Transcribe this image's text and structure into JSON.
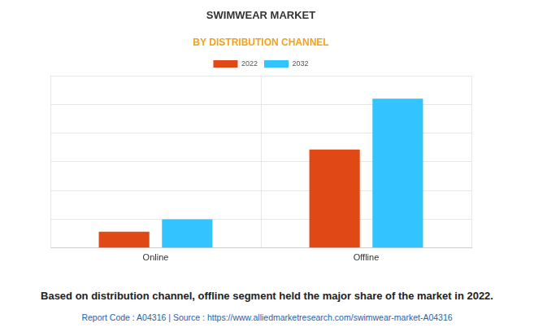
{
  "chart_data": {
    "type": "bar",
    "title": "SWIMWEAR MARKET",
    "subtitle": "BY DISTRIBUTION CHANNEL",
    "categories": [
      "Online",
      "Offline"
    ],
    "series": [
      {
        "name": "2022",
        "color": "#e04816",
        "values": [
          0.57,
          3.43
        ]
      },
      {
        "name": "2032",
        "color": "#33c4ff",
        "values": [
          1.0,
          5.2
        ]
      }
    ],
    "ylim": [
      0,
      6
    ],
    "yticks": [
      0,
      1,
      2,
      3,
      4,
      5,
      6
    ],
    "grid": true,
    "legend": "top",
    "tick_labels": "x",
    "annotations": [
      "Based on distribution channel, offline segment held the major share of the market in 2022.",
      "Report Code : A04316  |  Source : https://www.alliedmarketresearch.com/swimwear-market-A04316"
    ]
  }
}
